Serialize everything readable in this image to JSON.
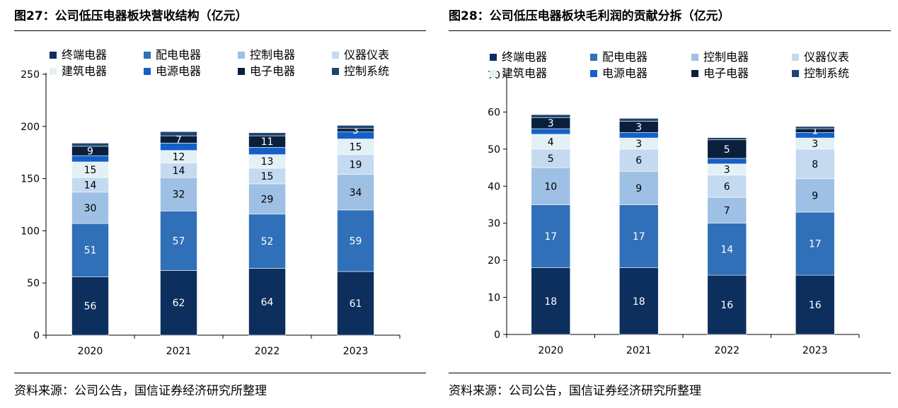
{
  "colors": {
    "终端电器": "#0d2f5e",
    "配电电器": "#3070b8",
    "控制电器": "#9ec0e4",
    "仪器仪表": "#c4daf0",
    "建筑电器": "#e3f1f6",
    "电源电器": "#1560c8",
    "电子电器": "#0a1f3c",
    "控制系统": "#1d4572"
  },
  "figures": [
    {
      "title": "图27：公司低压电器板块营收结构（亿元）",
      "source": "资料来源：公司公告，国信证券经济研究所整理"
    },
    {
      "title": "图28：公司低压电器板块毛利润的贡献分拆（亿元）",
      "source": "资料来源：公司公告，国信证券经济研究所整理"
    }
  ],
  "chart_data": [
    {
      "type": "bar",
      "stacked": true,
      "title": "图27：公司低压电器板块营收结构（亿元）",
      "categories": [
        "2020",
        "2021",
        "2022",
        "2023"
      ],
      "ylim": [
        0,
        250
      ],
      "yticks": [
        0,
        50,
        100,
        150,
        200,
        250
      ],
      "legend": "top",
      "series": [
        {
          "name": "终端电器",
          "values": [
            56,
            62,
            64,
            61
          ],
          "labels": [
            "56",
            "62",
            "64",
            "61"
          ]
        },
        {
          "name": "配电电器",
          "values": [
            51,
            57,
            52,
            59
          ],
          "labels": [
            "51",
            "57",
            "52",
            "59"
          ]
        },
        {
          "name": "控制电器",
          "values": [
            30,
            32,
            29,
            34
          ],
          "labels": [
            "30",
            "32",
            "29",
            "34"
          ]
        },
        {
          "name": "仪器仪表",
          "values": [
            14,
            14,
            15,
            19
          ],
          "labels": [
            "14",
            "14",
            "15",
            "19"
          ]
        },
        {
          "name": "建筑电器",
          "values": [
            15,
            12,
            13,
            15
          ],
          "labels": [
            "15",
            "12",
            "13",
            "15"
          ]
        },
        {
          "name": "电源电器",
          "values": [
            6,
            7,
            7,
            7
          ],
          "labels": [
            "",
            "",
            "",
            ""
          ]
        },
        {
          "name": "电子电器",
          "values": [
            9,
            7,
            11,
            3
          ],
          "labels": [
            "9",
            "7",
            "11",
            "3"
          ]
        },
        {
          "name": "控制系统",
          "values": [
            3,
            4,
            3,
            3
          ],
          "labels": [
            "",
            "",
            "",
            ""
          ]
        }
      ]
    },
    {
      "type": "bar",
      "stacked": true,
      "title": "图28：公司低压电器板块毛利润的贡献分拆（亿元）",
      "categories": [
        "2020",
        "2021",
        "2022",
        "2023"
      ],
      "ylim": [
        0,
        70
      ],
      "yticks": [
        0,
        10,
        20,
        30,
        40,
        50,
        60,
        70
      ],
      "legend": "top",
      "series": [
        {
          "name": "终端电器",
          "values": [
            18,
            18,
            16,
            16
          ],
          "labels": [
            "18",
            "18",
            "16",
            "16"
          ]
        },
        {
          "name": "配电电器",
          "values": [
            17,
            17,
            14,
            17
          ],
          "labels": [
            "17",
            "17",
            "14",
            "17"
          ]
        },
        {
          "name": "控制电器",
          "values": [
            10,
            9,
            7,
            9
          ],
          "labels": [
            "10",
            "9",
            "7",
            "9"
          ]
        },
        {
          "name": "仪器仪表",
          "values": [
            5,
            6,
            6,
            8
          ],
          "labels": [
            "5",
            "6",
            "6",
            "8"
          ]
        },
        {
          "name": "建筑电器",
          "values": [
            4,
            3,
            3,
            3
          ],
          "labels": [
            "4",
            "3",
            "3",
            "3"
          ]
        },
        {
          "name": "电源电器",
          "values": [
            1.5,
            1.5,
            1.5,
            1.5
          ],
          "labels": [
            "",
            "",
            "",
            ""
          ]
        },
        {
          "name": "电子电器",
          "values": [
            3,
            3,
            5,
            1
          ],
          "labels": [
            "3",
            "3",
            "5",
            "1"
          ]
        },
        {
          "name": "控制系统",
          "values": [
            0.8,
            0.8,
            0.6,
            0.6
          ],
          "labels": [
            "",
            "",
            "",
            ""
          ]
        }
      ]
    }
  ]
}
